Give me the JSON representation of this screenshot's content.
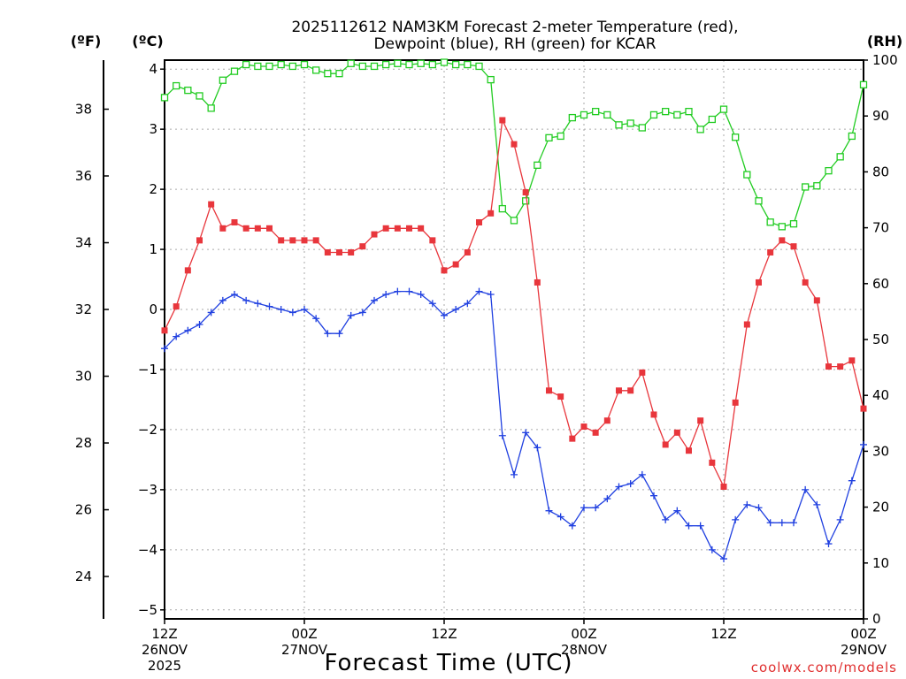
{
  "chart_data": {
    "type": "line",
    "title": [
      "2025112612 NAM3KM Forecast 2-meter Temperature (red),",
      "Dewpoint (blue), RH (green) for KCAR"
    ],
    "xlabel": "Forecast Time (UTC)",
    "credit": "coolwx.com/models",
    "unit_labels": {
      "fahrenheit": "(ºF)",
      "celsius": "(ºC)",
      "rh": "(RH)"
    },
    "x_range_hours": [
      0,
      60
    ],
    "x_ticks": [
      {
        "hour": 0,
        "lines": [
          "12Z",
          "26NOV",
          "2025"
        ]
      },
      {
        "hour": 12,
        "lines": [
          "00Z",
          "27NOV"
        ]
      },
      {
        "hour": 24,
        "lines": [
          "12Z"
        ]
      },
      {
        "hour": 36,
        "lines": [
          "00Z",
          "28NOV"
        ]
      },
      {
        "hour": 48,
        "lines": [
          "12Z"
        ]
      },
      {
        "hour": 60,
        "lines": [
          "00Z",
          "29NOV"
        ]
      }
    ],
    "y_celsius": {
      "range": [
        -5.15,
        4.15
      ],
      "ticks": [
        "4",
        "3",
        "2",
        "1",
        "0",
        "−1",
        "−2",
        "−3",
        "−4",
        "−5"
      ]
    },
    "y_fahrenheit": {
      "ticks": [
        "38",
        "36",
        "34",
        "32",
        "30",
        "28",
        "26",
        "24"
      ]
    },
    "y_rh": {
      "range": [
        0,
        100
      ],
      "ticks": [
        "100",
        "90",
        "80",
        "70",
        "60",
        "50",
        "40",
        "30",
        "20",
        "10",
        "0"
      ]
    },
    "grid": true,
    "series": [
      {
        "name": "2-meter Temperature",
        "axis": "celsius",
        "color": "#e8363c",
        "marker": "filled-square",
        "values": [
          -0.35,
          0.05,
          0.65,
          1.15,
          1.75,
          1.35,
          1.45,
          1.35,
          1.35,
          1.35,
          1.15,
          1.15,
          1.15,
          1.15,
          0.95,
          0.95,
          0.95,
          1.05,
          1.25,
          1.35,
          1.35,
          1.35,
          1.35,
          1.15,
          0.65,
          0.75,
          0.95,
          1.45,
          1.6,
          3.15,
          2.75,
          1.95,
          0.45,
          -1.35,
          -1.45,
          -2.15,
          -1.95,
          -2.05,
          -1.85,
          -1.35,
          -1.35,
          -1.05,
          -1.75,
          -2.25,
          -2.05,
          -2.35,
          -1.85,
          -2.55,
          -2.95,
          -1.55,
          -0.25,
          0.45,
          0.95,
          1.15,
          1.05,
          0.45,
          0.15,
          -0.95,
          -0.95,
          -0.85,
          -1.65
        ]
      },
      {
        "name": "Dewpoint",
        "axis": "celsius",
        "color": "#2040e0",
        "marker": "plus",
        "values": [
          -0.65,
          -0.45,
          -0.35,
          -0.25,
          -0.05,
          0.15,
          0.25,
          0.15,
          0.1,
          0.05,
          0.0,
          -0.05,
          0.0,
          -0.15,
          -0.4,
          -0.4,
          -0.1,
          -0.05,
          0.15,
          0.25,
          0.3,
          0.3,
          0.25,
          0.1,
          -0.1,
          0.0,
          0.1,
          0.3,
          0.25,
          -2.1,
          -2.75,
          -2.05,
          -2.3,
          -3.35,
          -3.45,
          -3.6,
          -3.3,
          -3.3,
          -3.15,
          -2.95,
          -2.9,
          -2.75,
          -3.1,
          -3.5,
          -3.35,
          -3.6,
          -3.6,
          -4.0,
          -4.15,
          -3.5,
          -3.25,
          -3.3,
          -3.55,
          -3.55,
          -3.55,
          -3.0,
          -3.25,
          -3.9,
          -3.5,
          -2.85,
          -2.25
        ]
      },
      {
        "name": "Relative Humidity",
        "axis": "rh",
        "color": "#22cc22",
        "marker": "open-square",
        "values": [
          93.3,
          95.4,
          94.6,
          93.6,
          91.4,
          96.4,
          98.0,
          99.2,
          98.9,
          98.9,
          99.2,
          98.9,
          99.2,
          98.2,
          97.6,
          97.6,
          99.4,
          98.9,
          98.9,
          99.2,
          99.4,
          99.2,
          99.4,
          99.2,
          99.6,
          99.2,
          99.2,
          98.9,
          96.5,
          73.4,
          71.3,
          74.8,
          81.2,
          86.1,
          86.4,
          89.7,
          90.2,
          90.8,
          90.2,
          88.4,
          88.7,
          87.9,
          90.2,
          90.8,
          90.2,
          90.8,
          87.6,
          89.4,
          91.2,
          86.2,
          79.5,
          74.8,
          71.0,
          70.2,
          70.7,
          77.3,
          77.5,
          80.2,
          82.7,
          86.4,
          95.6
        ]
      }
    ]
  }
}
